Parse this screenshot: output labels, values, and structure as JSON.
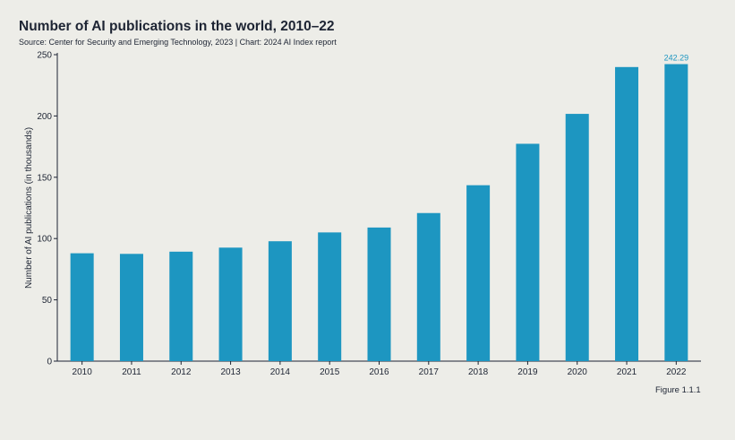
{
  "header": {
    "title": "Number of AI publications in the world, 2010–22",
    "source": "Source: Center for Security and Emerging Technology, 2023 | Chart: 2024 AI Index report"
  },
  "footer": {
    "figure": "Figure 1.1.1"
  },
  "colors": {
    "bar": "#1d96c1",
    "axis": "#1d2433",
    "data_label": "#1d96c1",
    "background": "#edede8"
  },
  "chart_data": {
    "type": "bar",
    "title": "Number of AI publications in the world, 2010–22",
    "xlabel": "",
    "ylabel": "Number of AI publications (in thousands)",
    "categories": [
      "2010",
      "2011",
      "2012",
      "2013",
      "2014",
      "2015",
      "2016",
      "2017",
      "2018",
      "2019",
      "2020",
      "2021",
      "2022"
    ],
    "values": [
      88.0,
      87.5,
      89.3,
      92.6,
      97.8,
      105.0,
      109.0,
      120.8,
      143.5,
      177.3,
      201.7,
      239.9,
      242.29
    ],
    "yticks": [
      0,
      50,
      100,
      150,
      200,
      250
    ],
    "ylim": [
      0,
      250
    ],
    "grid": false,
    "annotations": [
      {
        "category": "2022",
        "text": "242.29"
      }
    ]
  }
}
